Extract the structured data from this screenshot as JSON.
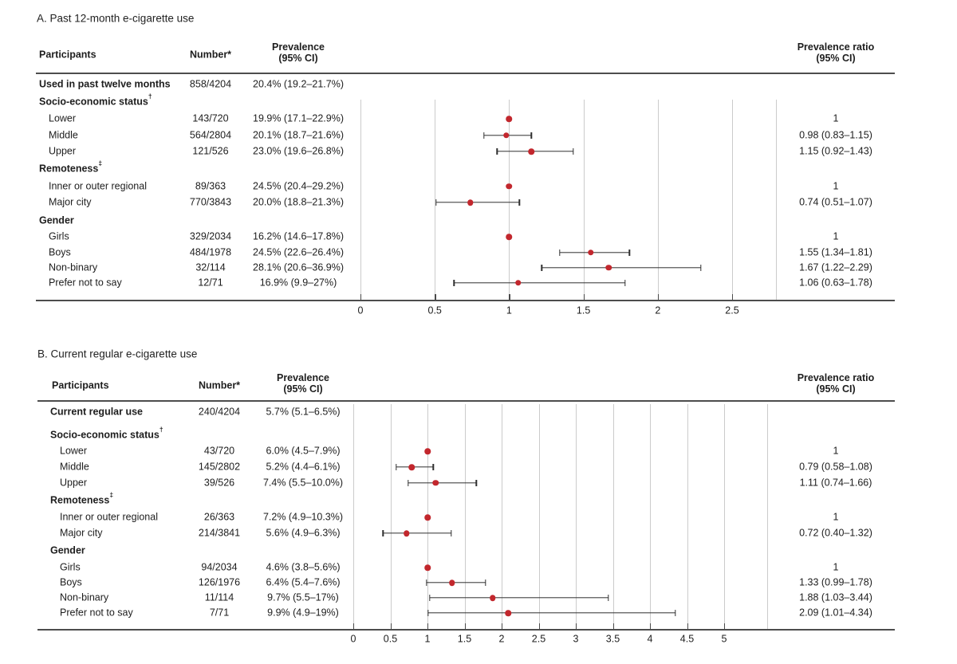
{
  "colors": {
    "marker": "#c2272d",
    "ci_line": "#2e2e2e",
    "gridline": "#cbcbcb",
    "rule": "#4d4d4d",
    "text": "#1d1d1d"
  },
  "figure": {
    "panels": [
      {
        "title": "A. Past 12-month e-cigarette use",
        "columns": {
          "participants": "Participants",
          "number": "Number*",
          "prevalence": "Prevalence\n(95% CI)",
          "ratio": "Prevalence ratio\n(95% CI)"
        },
        "rows": [
          {
            "type": "overall",
            "label": "Used in past twelve months",
            "number": "858/4204",
            "prevalence": "20.4% (19.2–21.7%)"
          },
          {
            "type": "group",
            "label": "Socio-economic status",
            "sup": "†"
          },
          {
            "type": "item",
            "label": "Lower",
            "number": "143/720",
            "prevalence": "19.9% (17.1–22.9%)",
            "ratio": "1"
          },
          {
            "type": "item",
            "label": "Middle",
            "number": "564/2804",
            "prevalence": "20.1% (18.7–21.6%)",
            "ratio": "0.98 (0.83–1.15)"
          },
          {
            "type": "item",
            "label": "Upper",
            "number": "121/526",
            "prevalence": "23.0% (19.6–26.8%)",
            "ratio": "1.15 (0.92–1.43)"
          },
          {
            "type": "group",
            "label": "Remoteness",
            "sup": "‡"
          },
          {
            "type": "item",
            "label": "Inner or outer regional",
            "number": "89/363",
            "prevalence": "24.5% (20.4–29.2%)",
            "ratio": "1"
          },
          {
            "type": "item",
            "label": "Major city",
            "number": "770/3843",
            "prevalence": "20.0% (18.8–21.3%)",
            "ratio": "0.74 (0.51–1.07)"
          },
          {
            "type": "group",
            "label": "Gender"
          },
          {
            "type": "item",
            "label": "Girls",
            "number": "329/2034",
            "prevalence": "16.2% (14.6–17.8%)",
            "ratio": "1"
          },
          {
            "type": "item",
            "label": "Boys",
            "number": "484/1978",
            "prevalence": "24.5% (22.6–26.4%)",
            "ratio": "1.55 (1.34–1.81)"
          },
          {
            "type": "item",
            "label": "Non-binary",
            "number": "32/114",
            "prevalence": "28.1% (20.6–36.9%)",
            "ratio": "1.67 (1.22–2.29)"
          },
          {
            "type": "item",
            "label": "Prefer not to say",
            "number": "12/71",
            "prevalence": "16.9% (9.9–27%)",
            "ratio": "1.06 (0.63–1.78)"
          }
        ]
      },
      {
        "title": "B. Current regular e-cigarette use",
        "columns": {
          "participants": "Participants",
          "number": "Number*",
          "prevalence": "Prevalence\n(95% CI)",
          "ratio": "Prevalence ratio\n(95% CI)"
        },
        "rows": [
          {
            "type": "overall",
            "label": "Current regular use",
            "number": "240/4204",
            "prevalence": "5.7% (5.1–6.5%)"
          },
          {
            "type": "group",
            "label": "Socio-economic status",
            "sup": "†"
          },
          {
            "type": "item",
            "label": "Lower",
            "number": "43/720",
            "prevalence": "6.0% (4.5–7.9%)",
            "ratio": "1"
          },
          {
            "type": "item",
            "label": "Middle",
            "number": "145/2802",
            "prevalence": "5.2% (4.4–6.1%)",
            "ratio": "0.79 (0.58–1.08)"
          },
          {
            "type": "item",
            "label": "Upper",
            "number": "39/526",
            "prevalence": "7.4% (5.5–10.0%)",
            "ratio": "1.11 (0.74–1.66)"
          },
          {
            "type": "group",
            "label": "Remoteness",
            "sup": "‡"
          },
          {
            "type": "item",
            "label": "Inner or outer regional",
            "number": "26/363",
            "prevalence": "7.2% (4.9–10.3%)",
            "ratio": "1"
          },
          {
            "type": "item",
            "label": "Major city",
            "number": "214/3841",
            "prevalence": "5.6% (4.9–6.3%)",
            "ratio": "0.72 (0.40–1.32)"
          },
          {
            "type": "group",
            "label": "Gender"
          },
          {
            "type": "item",
            "label": "Girls",
            "number": "94/2034",
            "prevalence": "4.6% (3.8–5.6%)",
            "ratio": "1"
          },
          {
            "type": "item",
            "label": "Boys",
            "number": "126/1976",
            "prevalence": "6.4% (5.4–7.6%)",
            "ratio": "1.33 (0.99–1.78)"
          },
          {
            "type": "item",
            "label": "Non-binary",
            "number": "11/114",
            "prevalence": "9.7% (5.5–17%)",
            "ratio": "1.88 (1.03–3.44)"
          },
          {
            "type": "item",
            "label": "Prefer not to say",
            "number": "7/71",
            "prevalence": "9.9% (4.9–19%)",
            "ratio": "2.09 (1.01–4.34)"
          }
        ]
      }
    ]
  },
  "chart_data": [
    {
      "type": "scatter",
      "subtype": "forest-plot",
      "title": "A. Past 12-month e-cigarette use",
      "xlabel": "Prevalence ratio (95% CI)",
      "xlim": [
        0,
        2.8
      ],
      "xticks": [
        0,
        0.5,
        1,
        1.5,
        2,
        2.5
      ],
      "xtick_labels": [
        "0",
        "0.5",
        "1",
        "1.5",
        "2",
        "2.5"
      ],
      "grid": true,
      "reference_value": 1,
      "points": [
        {
          "label": "Lower",
          "estimate": 1.0,
          "ci_low": null,
          "ci_high": null,
          "reference": true
        },
        {
          "label": "Middle",
          "estimate": 0.98,
          "ci_low": 0.83,
          "ci_high": 1.15
        },
        {
          "label": "Upper",
          "estimate": 1.15,
          "ci_low": 0.92,
          "ci_high": 1.43
        },
        {
          "label": "Inner or outer regional",
          "estimate": 1.0,
          "ci_low": null,
          "ci_high": null,
          "reference": true
        },
        {
          "label": "Major city",
          "estimate": 0.74,
          "ci_low": 0.51,
          "ci_high": 1.07
        },
        {
          "label": "Girls",
          "estimate": 1.0,
          "ci_low": null,
          "ci_high": null,
          "reference": true
        },
        {
          "label": "Boys",
          "estimate": 1.55,
          "ci_low": 1.34,
          "ci_high": 1.81
        },
        {
          "label": "Non-binary",
          "estimate": 1.67,
          "ci_low": 1.22,
          "ci_high": 2.29
        },
        {
          "label": "Prefer not to say",
          "estimate": 1.06,
          "ci_low": 0.63,
          "ci_high": 1.78
        }
      ]
    },
    {
      "type": "scatter",
      "subtype": "forest-plot",
      "title": "B. Current regular e-cigarette use",
      "xlabel": "Prevalence ratio (95% CI)",
      "xlim": [
        0,
        5.6
      ],
      "xticks": [
        0,
        0.5,
        1,
        1.5,
        2,
        2.5,
        3,
        3.5,
        4,
        4.5,
        5
      ],
      "xtick_labels": [
        "0",
        "0.5",
        "1",
        "1.5",
        "2",
        "2.5",
        "3",
        "3.5",
        "4",
        "4.5",
        "5"
      ],
      "grid": true,
      "reference_value": 1,
      "points": [
        {
          "label": "Lower",
          "estimate": 1.0,
          "ci_low": null,
          "ci_high": null,
          "reference": true
        },
        {
          "label": "Middle",
          "estimate": 0.79,
          "ci_low": 0.58,
          "ci_high": 1.08
        },
        {
          "label": "Upper",
          "estimate": 1.11,
          "ci_low": 0.74,
          "ci_high": 1.66
        },
        {
          "label": "Inner or outer regional",
          "estimate": 1.0,
          "ci_low": null,
          "ci_high": null,
          "reference": true
        },
        {
          "label": "Major city",
          "estimate": 0.72,
          "ci_low": 0.4,
          "ci_high": 1.32
        },
        {
          "label": "Girls",
          "estimate": 1.0,
          "ci_low": null,
          "ci_high": null,
          "reference": true
        },
        {
          "label": "Boys",
          "estimate": 1.33,
          "ci_low": 0.99,
          "ci_high": 1.78
        },
        {
          "label": "Non-binary",
          "estimate": 1.88,
          "ci_low": 1.03,
          "ci_high": 3.44
        },
        {
          "label": "Prefer not to say",
          "estimate": 2.09,
          "ci_low": 1.01,
          "ci_high": 4.34
        }
      ]
    }
  ]
}
